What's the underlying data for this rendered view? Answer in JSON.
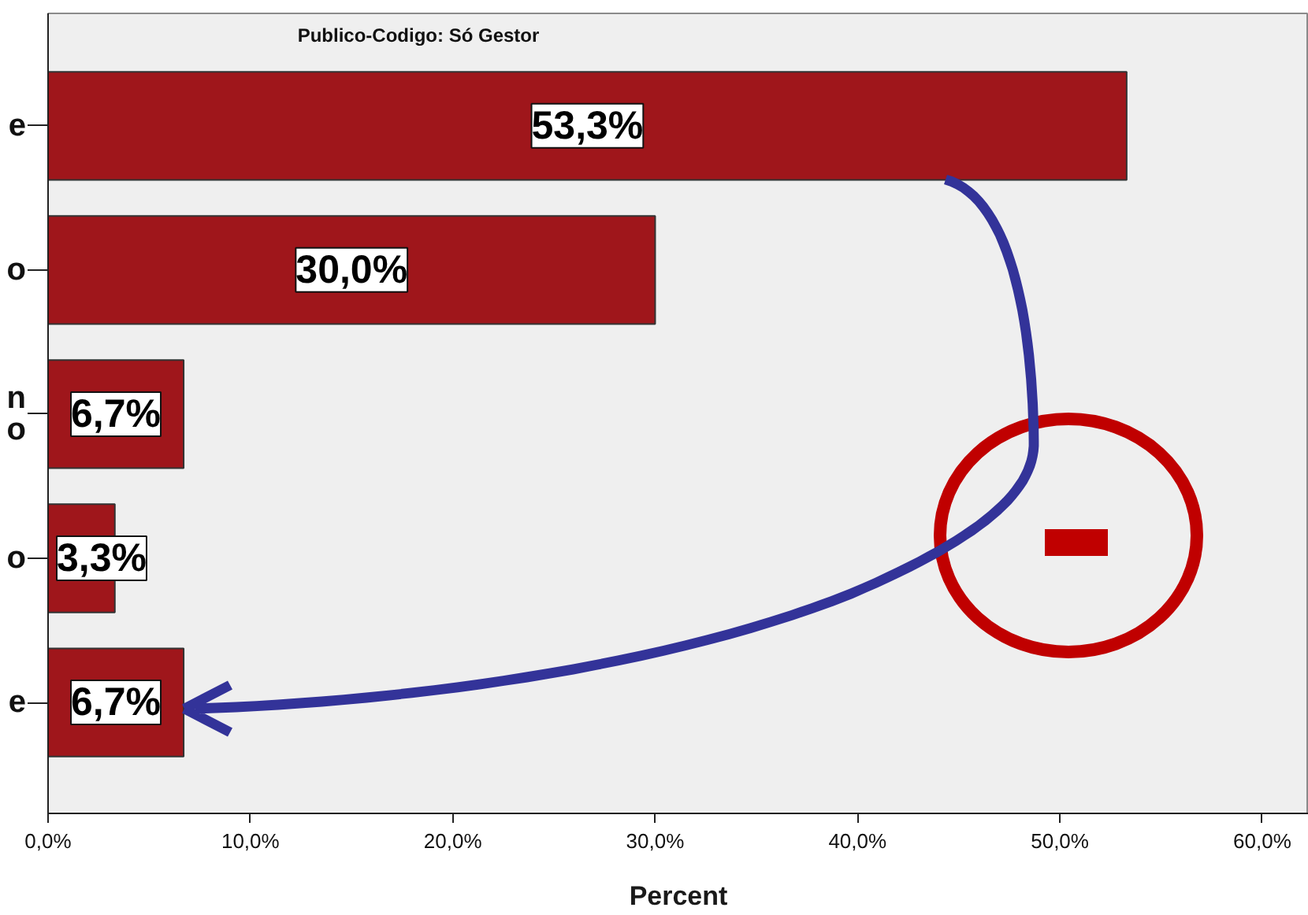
{
  "chart_data": {
    "type": "bar",
    "orientation": "horizontal",
    "title": "Publico-Codigo: Só Gestor",
    "xlabel": "Percent",
    "categories": [
      "e",
      "o",
      "n\no",
      "o",
      "e"
    ],
    "values": [
      53.3,
      30.0,
      6.7,
      3.3,
      6.7
    ],
    "value_labels": [
      "53,3%",
      "30,0%",
      "6,7%",
      "3,3%",
      "6,7%"
    ],
    "color": "#9f161b",
    "xlim": [
      0,
      62.3
    ],
    "xticks": [
      {
        "value": 0,
        "label": "0,0%"
      },
      {
        "value": 10,
        "label": "10,0%"
      },
      {
        "value": 20,
        "label": "20,0%"
      },
      {
        "value": 30,
        "label": "30,0%"
      },
      {
        "value": 40,
        "label": "40,0%"
      },
      {
        "value": 50,
        "label": "50,0%"
      },
      {
        "value": 60,
        "label": "60,0%"
      }
    ],
    "grid": false
  }
}
